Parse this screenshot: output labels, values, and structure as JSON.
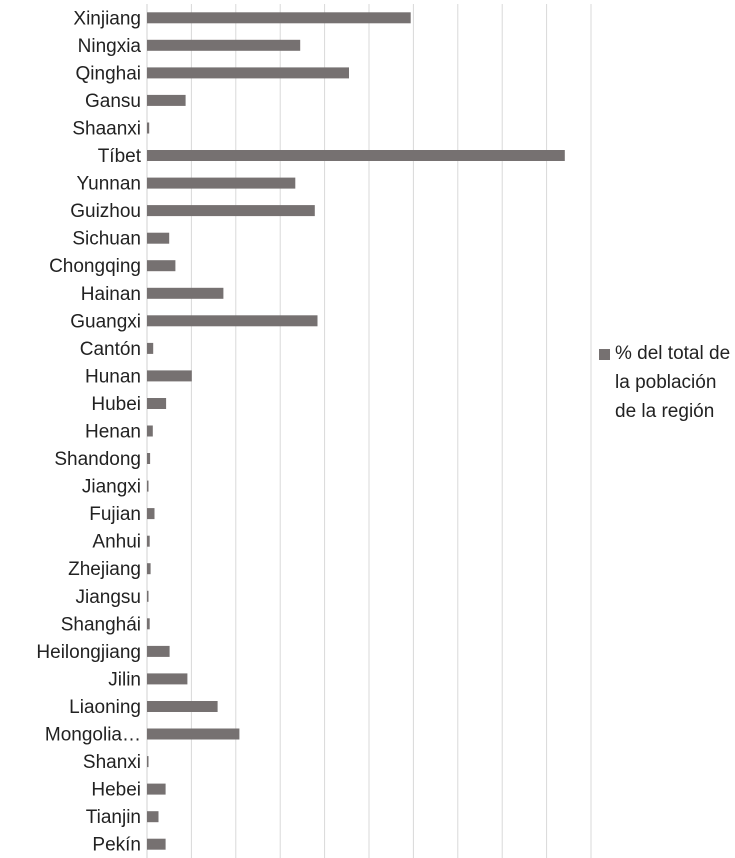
{
  "chart_data": {
    "type": "bar",
    "orientation": "horizontal",
    "categories": [
      "Xinjiang",
      "Ningxia",
      "Qinghai",
      "Gansu",
      "Shaanxi",
      "Tíbet",
      "Yunnan",
      "Guizhou",
      "Sichuan",
      "Chongqing",
      "Hainan",
      "Guangxi",
      "Cantón",
      "Hunan",
      "Hubei",
      "Henan",
      "Shandong",
      "Jiangxi",
      "Fujian",
      "Anhui",
      "Zhejiang",
      "Jiangsu",
      "Shanghái",
      "Heilongjiang",
      "Jilin",
      "Liaoning",
      "Mongolia…",
      "Shanxi",
      "Hebei",
      "Tianjin",
      "Pekín"
    ],
    "series": [
      {
        "name": "% del total de la población de la región",
        "values": [
          59.4,
          34.5,
          45.5,
          8.7,
          0.5,
          94.1,
          33.4,
          37.8,
          5.0,
          6.4,
          17.2,
          38.4,
          1.4,
          10.1,
          4.3,
          1.3,
          0.7,
          0.1,
          1.7,
          0.6,
          0.8,
          0.3,
          0.6,
          5.1,
          9.1,
          15.9,
          20.8,
          0.3,
          4.2,
          2.6,
          4.2
        ]
      }
    ],
    "xlim": [
      0,
      100
    ],
    "xticks": [
      0,
      10,
      20,
      30,
      40,
      50,
      60,
      70,
      80,
      90,
      100
    ],
    "grid": "vertical",
    "legend": "right",
    "colors": {
      "bar": "#767171",
      "grid": "#d9d9d9",
      "text": "#222222"
    }
  }
}
